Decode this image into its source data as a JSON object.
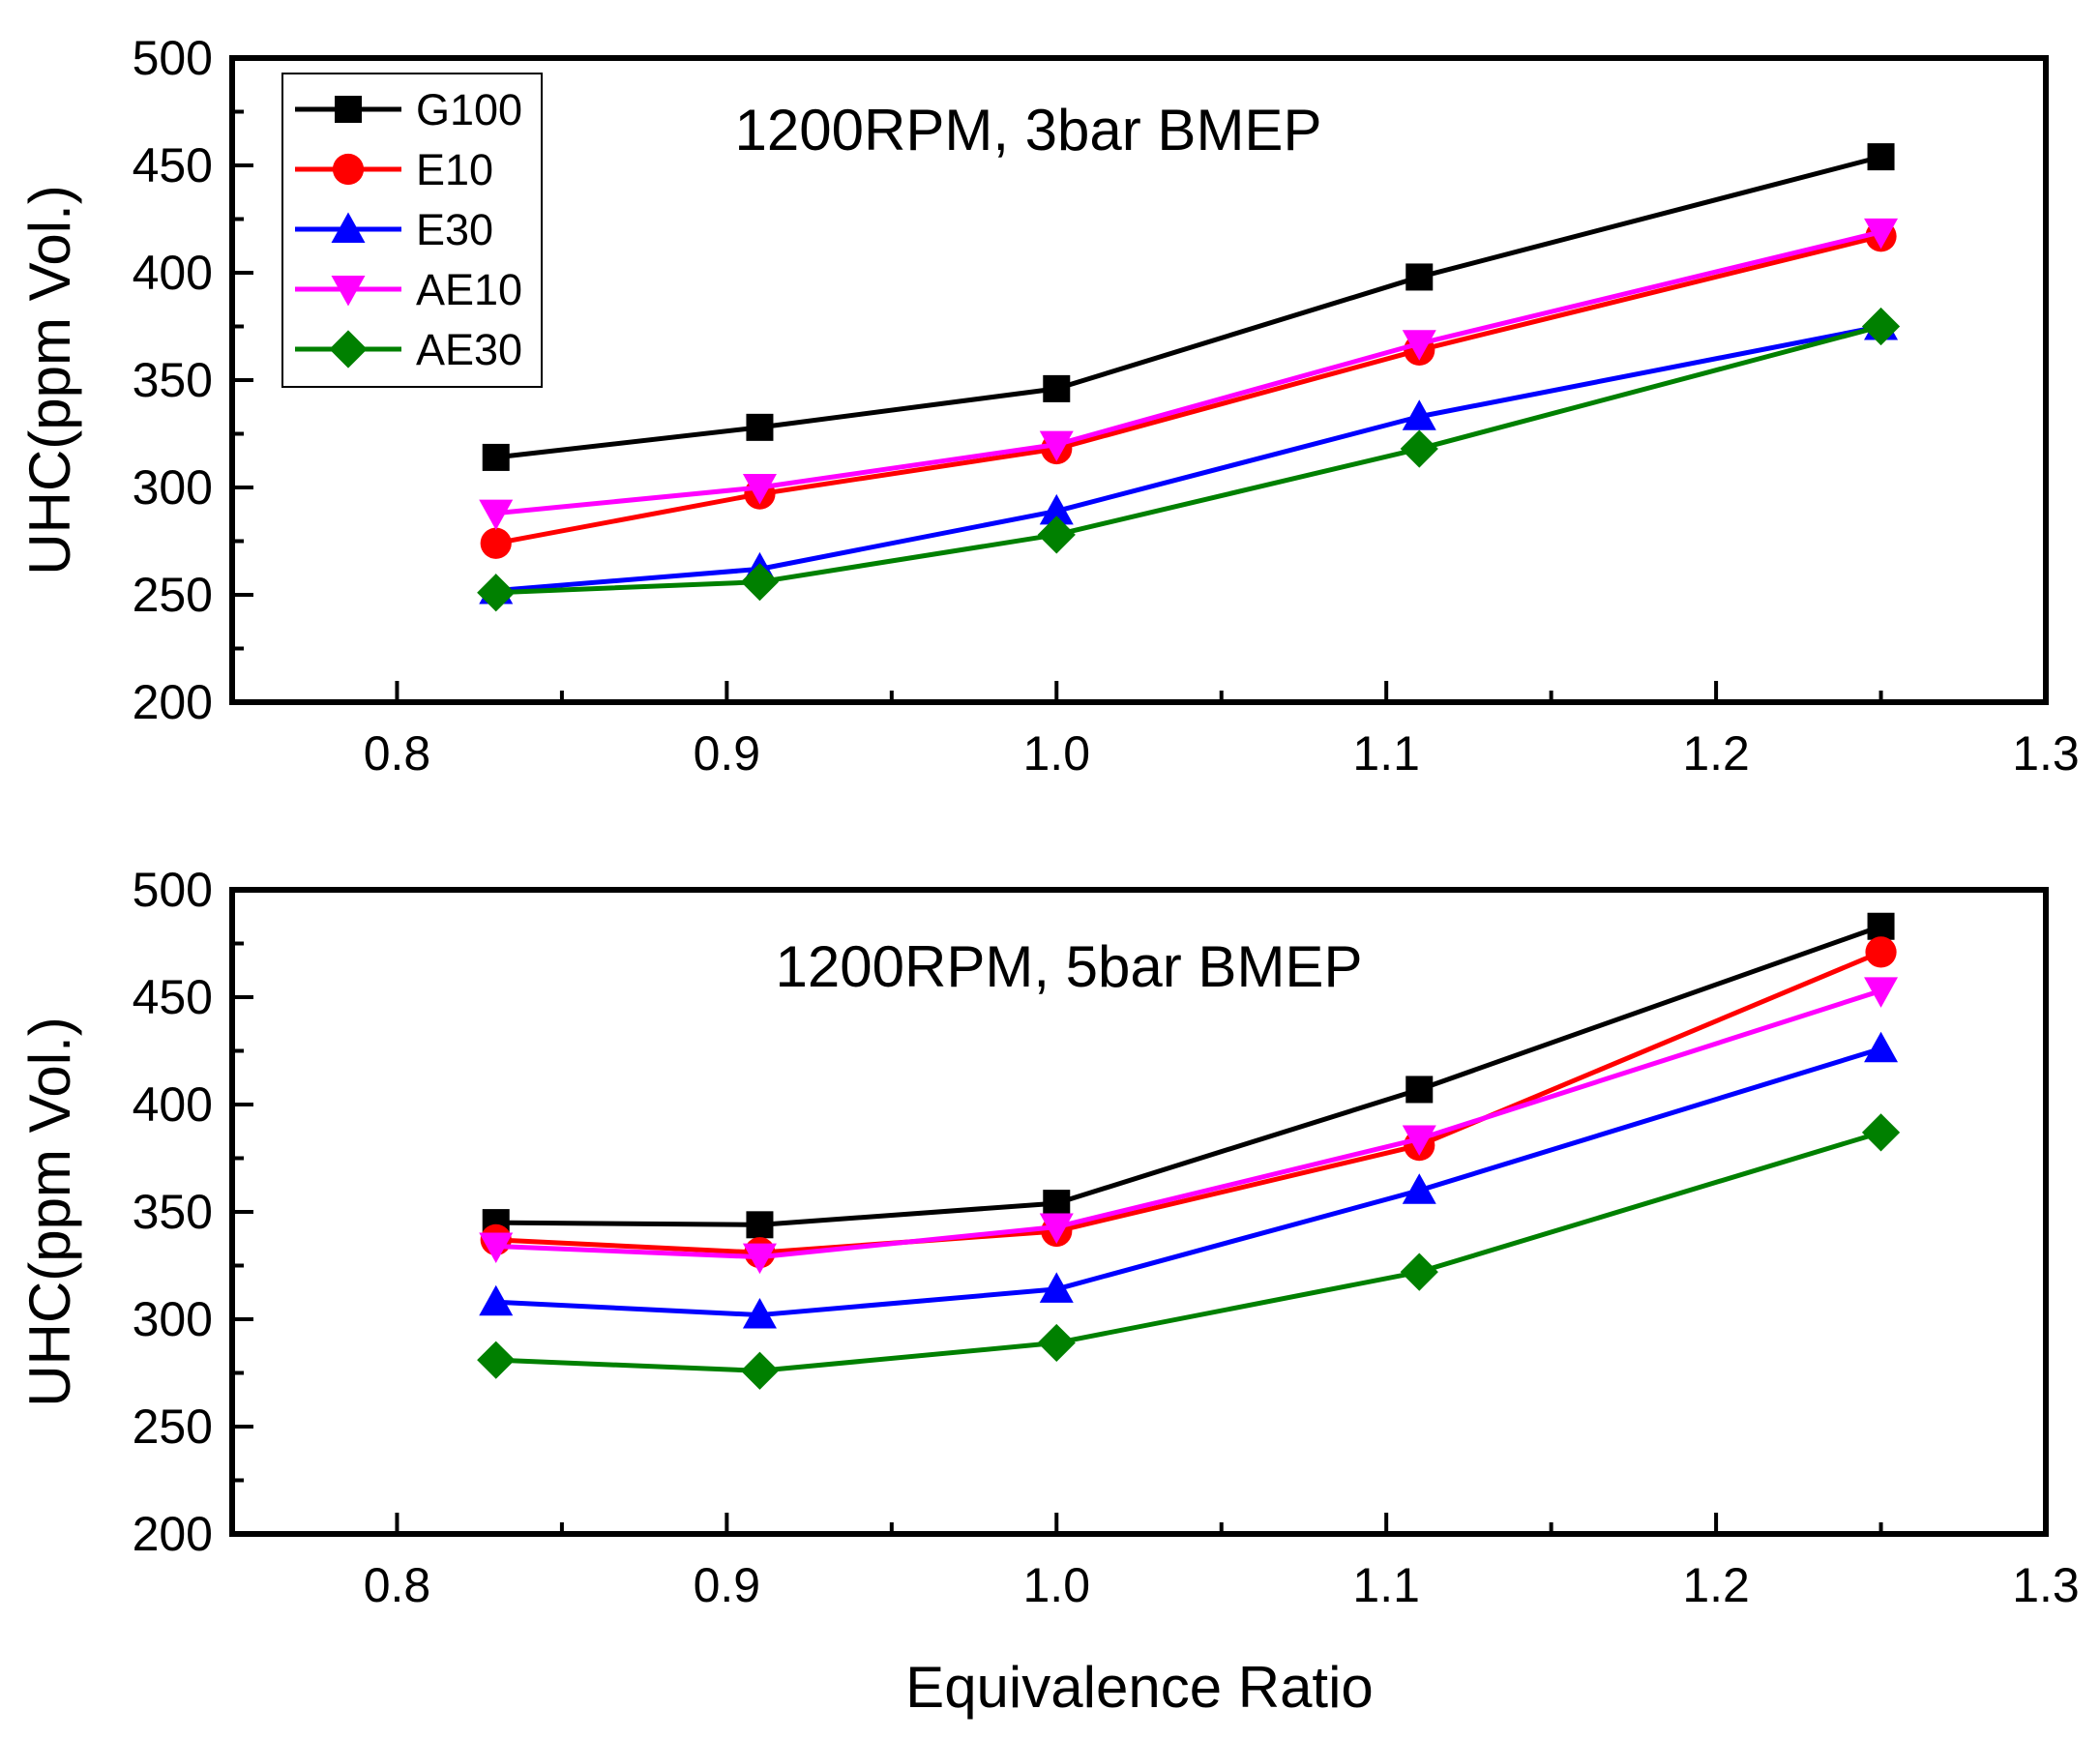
{
  "figure": {
    "xlabel": "Equivalence Ratio",
    "ylabel": "UHC(ppm Vol.)"
  },
  "legend": {
    "placement": "top-left of upper panel",
    "entries": [
      {
        "name": "G100",
        "color": "#000000",
        "marker": "square"
      },
      {
        "name": "E10",
        "color": "#ff0000",
        "marker": "circle"
      },
      {
        "name": "E30",
        "color": "#0000ff",
        "marker": "triangle-up"
      },
      {
        "name": "AE10",
        "color": "#ff00ff",
        "marker": "triangle-down"
      },
      {
        "name": "AE30",
        "color": "#008000",
        "marker": "diamond"
      }
    ]
  },
  "chart_data": [
    {
      "type": "line",
      "title": "1200RPM, 3bar BMEP",
      "xlabel": "Equivalence Ratio",
      "ylabel": "UHC(ppm Vol.)",
      "xlim": [
        0.75,
        1.3
      ],
      "ylim": [
        200,
        500
      ],
      "xticks": [
        "0.8",
        "0.9",
        "1.0",
        "1.1",
        "1.2",
        "1.3"
      ],
      "yticks": [
        "200",
        "250",
        "300",
        "350",
        "400",
        "450",
        "500"
      ],
      "x": [
        0.83,
        0.91,
        1.0,
        1.11,
        1.25
      ],
      "series": [
        {
          "name": "G100",
          "color": "#000000",
          "marker": "square",
          "values": [
            314,
            328,
            346,
            398,
            454
          ]
        },
        {
          "name": "E10",
          "color": "#ff0000",
          "marker": "circle",
          "values": [
            274,
            297,
            318,
            364,
            417
          ]
        },
        {
          "name": "E30",
          "color": "#0000ff",
          "marker": "triangle-up",
          "values": [
            252,
            262,
            289,
            333,
            375
          ]
        },
        {
          "name": "AE10",
          "color": "#ff00ff",
          "marker": "triangle-down",
          "values": [
            288,
            300,
            320,
            367,
            419
          ]
        },
        {
          "name": "AE30",
          "color": "#008000",
          "marker": "diamond",
          "values": [
            251,
            256,
            278,
            318,
            375
          ]
        }
      ]
    },
    {
      "type": "line",
      "title": "1200RPM, 5bar BMEP",
      "xlabel": "Equivalence Ratio",
      "ylabel": "UHC(ppm Vol.)",
      "xlim": [
        0.75,
        1.3
      ],
      "ylim": [
        200,
        500
      ],
      "xticks": [
        "0.8",
        "0.9",
        "1.0",
        "1.1",
        "1.2",
        "1.3"
      ],
      "yticks": [
        "200",
        "250",
        "300",
        "350",
        "400",
        "450",
        "500"
      ],
      "x": [
        0.83,
        0.91,
        1.0,
        1.11,
        1.25
      ],
      "series": [
        {
          "name": "G100",
          "color": "#000000",
          "marker": "square",
          "values": [
            345,
            344,
            354,
            407,
            483
          ]
        },
        {
          "name": "E10",
          "color": "#ff0000",
          "marker": "circle",
          "values": [
            337,
            331,
            341,
            381,
            471
          ]
        },
        {
          "name": "E30",
          "color": "#0000ff",
          "marker": "triangle-up",
          "values": [
            308,
            302,
            314,
            360,
            426
          ]
        },
        {
          "name": "AE10",
          "color": "#ff00ff",
          "marker": "triangle-down",
          "values": [
            334,
            329,
            343,
            384,
            453
          ]
        },
        {
          "name": "AE30",
          "color": "#008000",
          "marker": "diamond",
          "values": [
            281,
            276,
            289,
            322,
            387
          ]
        }
      ]
    }
  ]
}
